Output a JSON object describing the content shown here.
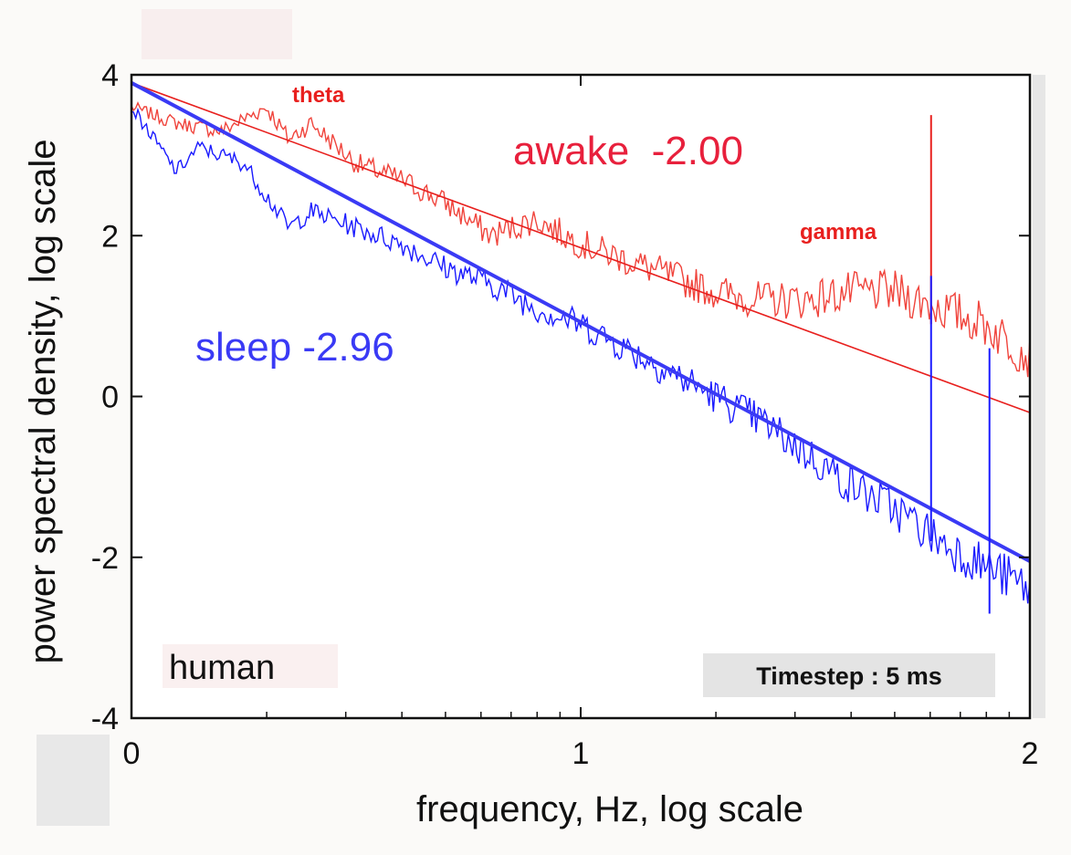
{
  "chart_data": {
    "type": "line",
    "xlabel": "frequency, Hz, log scale",
    "ylabel": "power spectral density, log scale",
    "xlim": [
      0,
      2
    ],
    "ylim": [
      -4,
      4
    ],
    "x_ticks": [
      0,
      1,
      2
    ],
    "y_ticks": [
      4,
      2,
      0,
      -2,
      -4
    ],
    "grid": false,
    "series": [
      {
        "name": "awake",
        "color": "#f0443c",
        "x": [
          0,
          0.1,
          0.2,
          0.3,
          0.35,
          0.4,
          0.5,
          0.6,
          0.7,
          0.8,
          0.9,
          1.0,
          1.1,
          1.2,
          1.3,
          1.4,
          1.5,
          1.6,
          1.7,
          1.8,
          1.9,
          2.0
        ],
        "y": [
          3.6,
          3.4,
          3.3,
          3.6,
          3.2,
          3.4,
          2.9,
          2.7,
          2.4,
          2.0,
          2.2,
          1.9,
          1.7,
          1.5,
          1.3,
          1.2,
          1.2,
          1.3,
          1.3,
          1.1,
          0.9,
          0.5
        ]
      },
      {
        "name": "sleep",
        "color": "#1a1aff",
        "x": [
          0,
          0.05,
          0.1,
          0.15,
          0.2,
          0.25,
          0.3,
          0.35,
          0.4,
          0.5,
          0.6,
          0.7,
          0.8,
          0.9,
          1.0,
          1.1,
          1.2,
          1.3,
          1.4,
          1.5,
          1.6,
          1.7,
          1.8,
          1.9,
          2.0
        ],
        "y": [
          3.6,
          3.2,
          2.8,
          3.1,
          3.0,
          2.9,
          2.5,
          2.1,
          2.3,
          2.1,
          1.9,
          1.6,
          1.4,
          1.1,
          0.9,
          0.6,
          0.3,
          0.0,
          -0.3,
          -0.7,
          -1.1,
          -1.4,
          -1.8,
          -2.1,
          -2.4
        ]
      }
    ],
    "fits": [
      {
        "name": "awake fit",
        "slope": -2.0,
        "color": "#e8201e",
        "x": [
          0,
          2
        ],
        "y": [
          3.9,
          -0.2
        ]
      },
      {
        "name": "sleep fit",
        "slope": -2.96,
        "color": "#3a3af5",
        "x": [
          0,
          2
        ],
        "y": [
          3.9,
          -2.05
        ]
      }
    ],
    "annotations": {
      "theta": "theta",
      "gamma": "gamma",
      "awake_label": "awake  -2.00",
      "sleep_label": "sleep -2.96",
      "species": "human",
      "timestep": "Timestep : 5 ms"
    }
  }
}
